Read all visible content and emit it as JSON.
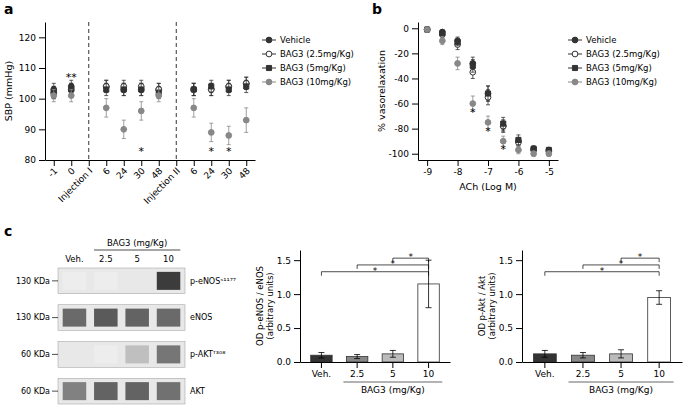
{
  "chart_data": [
    {
      "type": "scatter",
      "title": "a",
      "ylabel": "SBP (mmHg)",
      "categories": [
        "-1",
        "0",
        "Injection I",
        "6",
        "24",
        "30",
        "48",
        "Injection II",
        "6",
        "24",
        "30",
        "48"
      ],
      "ylim": [
        80,
        125
      ],
      "yticks": [
        80,
        90,
        100,
        110,
        120
      ],
      "legend": "right",
      "vlines": [
        2,
        7
      ],
      "series": [
        {
          "name": "Vehicle",
          "color": "#333333",
          "marker": "circle",
          "values": [
            103,
            104,
            null,
            104,
            103,
            103,
            103,
            null,
            103,
            103,
            104,
            105
          ],
          "errors": [
            2,
            2,
            null,
            2,
            2,
            2,
            2,
            null,
            2,
            2,
            2,
            2
          ]
        },
        {
          "name": "BAG3 (2.5mg/Kg)",
          "color": "#333333",
          "marker": "circle-open",
          "values": [
            102,
            103,
            null,
            104,
            104,
            104,
            103,
            null,
            103,
            103,
            104,
            105
          ],
          "errors": [
            2,
            2,
            null,
            2,
            2,
            2,
            2,
            null,
            2,
            2,
            2,
            2
          ]
        },
        {
          "name": "BAG3 (5mg/Kg)",
          "color": "#333333",
          "marker": "square",
          "values": [
            102,
            103,
            null,
            103,
            103,
            103,
            102,
            null,
            103,
            104,
            103,
            104
          ],
          "errors": [
            2,
            2,
            null,
            2,
            2,
            2,
            2,
            null,
            2,
            2,
            2,
            2
          ]
        },
        {
          "name": "BAG3 (10mg/Kg)",
          "color": "#888888",
          "marker": "circle",
          "values": [
            101,
            101,
            null,
            97,
            90,
            96,
            101,
            null,
            97,
            89,
            88,
            93
          ],
          "errors": [
            2,
            2,
            null,
            3,
            3,
            3,
            2,
            null,
            3,
            3,
            3,
            4
          ]
        }
      ],
      "annotations": [
        {
          "x": 5,
          "y": 83,
          "text": "*"
        },
        {
          "x": 9,
          "y": 83,
          "text": "*"
        },
        {
          "x": 10,
          "y": 83,
          "text": "*"
        },
        {
          "x": 1,
          "y": 107,
          "text": "**"
        }
      ]
    },
    {
      "type": "scatter",
      "title": "b",
      "xlabel": "ACh (Log M)",
      "ylabel": "% vasorelaxation",
      "x": [
        -9,
        -8.5,
        -8,
        -7.5,
        -7,
        -6.5,
        -6,
        -5.5,
        -5
      ],
      "xlim": [
        -9.3,
        -4.7
      ],
      "xticks": [
        -9,
        -8,
        -7,
        -6,
        -5
      ],
      "ylim": [
        -105,
        5
      ],
      "yticks": [
        0,
        -20,
        -40,
        -60,
        -80,
        -100
      ],
      "legend": "right",
      "series": [
        {
          "name": "Vehicle",
          "color": "#333333",
          "marker": "circle",
          "values": [
            -1,
            -3,
            -10,
            -28,
            -52,
            -78,
            -90,
            -96,
            -97
          ],
          "errors": [
            1,
            2,
            3,
            5,
            6,
            5,
            3,
            2,
            2
          ]
        },
        {
          "name": "BAG3 (2.5mg/Kg)",
          "color": "#333333",
          "marker": "circle-open",
          "values": [
            -1,
            -5,
            -13,
            -35,
            -55,
            -78,
            -91,
            -97,
            -98
          ],
          "errors": [
            1,
            2,
            4,
            5,
            6,
            4,
            3,
            2,
            2
          ]
        },
        {
          "name": "BAG3 (5mg/Kg)",
          "color": "#333333",
          "marker": "square",
          "values": [
            -1,
            -4,
            -11,
            -30,
            -52,
            -76,
            -89,
            -96,
            -97
          ],
          "errors": [
            1,
            2,
            3,
            5,
            6,
            5,
            4,
            2,
            2
          ]
        },
        {
          "name": "BAG3 (10mg/Kg)",
          "color": "#888888",
          "marker": "circle",
          "values": [
            -1,
            -10,
            -28,
            -60,
            -75,
            -90,
            -97,
            -100,
            -100
          ],
          "errors": [
            1,
            3,
            5,
            6,
            5,
            4,
            3,
            2,
            2
          ]
        }
      ],
      "annotations": [
        {
          "x": -7.5,
          "y": -67,
          "text": "*"
        },
        {
          "x": -7,
          "y": -82,
          "text": "*"
        },
        {
          "x": -6.5,
          "y": -96,
          "text": "*"
        }
      ]
    },
    {
      "type": "heatmap",
      "title": "c",
      "xlabel": "BAG3 (mg/Kg)",
      "categories": [
        "Veh.",
        "2.5",
        "5",
        "10"
      ],
      "rows": [
        {
          "name": "p-eNOSˢ¹¹⁷⁷",
          "label": "130 KDa",
          "values": [
            0.08,
            0.08,
            0.1,
            0.85
          ]
        },
        {
          "name": "eNOS",
          "label": "130 KDa",
          "values": [
            0.65,
            0.72,
            0.68,
            0.65
          ]
        },
        {
          "name": "p-AKTᵀ³⁰⁸",
          "label": "60 KDa",
          "values": [
            0.1,
            0.08,
            0.28,
            0.6
          ]
        },
        {
          "name": "AKT",
          "label": "60 KDa",
          "values": [
            0.55,
            0.68,
            0.68,
            0.62
          ]
        }
      ]
    },
    {
      "type": "bar",
      "ylabel": "OD p-eNOS / eNOS\n(arbitrary units)",
      "xlabel": "BAG3 (mg/Kg)",
      "categories": [
        "Veh.",
        "2.5",
        "5",
        "10"
      ],
      "values": [
        0.1,
        0.08,
        0.12,
        1.15
      ],
      "errors": [
        0.04,
        0.03,
        0.05,
        0.35
      ],
      "colors": [
        "#333333",
        "#888888",
        "#bbbbbb",
        "#ffffff"
      ],
      "ylim": [
        0,
        1.65
      ],
      "yticks": [
        {
          "value": 0,
          "label": "0.0"
        },
        0.5,
        {
          "value": 1,
          "label": "1.0"
        },
        1.5
      ],
      "annotations": [
        {
          "x1": "Veh.",
          "x2": "10",
          "y": 1.33,
          "text": "*"
        },
        {
          "x1": "2.5",
          "x2": "10",
          "y": 1.43,
          "text": "*"
        },
        {
          "x1": "5",
          "x2": "10",
          "y": 1.53,
          "text": "*"
        }
      ]
    },
    {
      "type": "bar",
      "ylabel": "OD p-Akt / Akt\n(arbitrary units)",
      "xlabel": "BAG3 (mg/Kg)",
      "categories": [
        "Veh.",
        "2.5",
        "5",
        "10"
      ],
      "values": [
        0.12,
        0.1,
        0.12,
        0.95
      ],
      "errors": [
        0.05,
        0.04,
        0.06,
        0.1
      ],
      "colors": [
        "#333333",
        "#888888",
        "#bbbbbb",
        "#ffffff"
      ],
      "ylim": [
        0,
        1.65
      ],
      "yticks": [
        {
          "value": 0,
          "label": "0.0"
        },
        0.5,
        {
          "value": 1,
          "label": "1.0"
        },
        1.5
      ],
      "annotations": [
        {
          "x1": "Veh.",
          "x2": "10",
          "y": 1.33,
          "text": "*"
        },
        {
          "x1": "2.5",
          "x2": "10",
          "y": 1.43,
          "text": "*"
        },
        {
          "x1": "5",
          "x2": "10",
          "y": 1.53,
          "text": "*"
        }
      ]
    }
  ]
}
